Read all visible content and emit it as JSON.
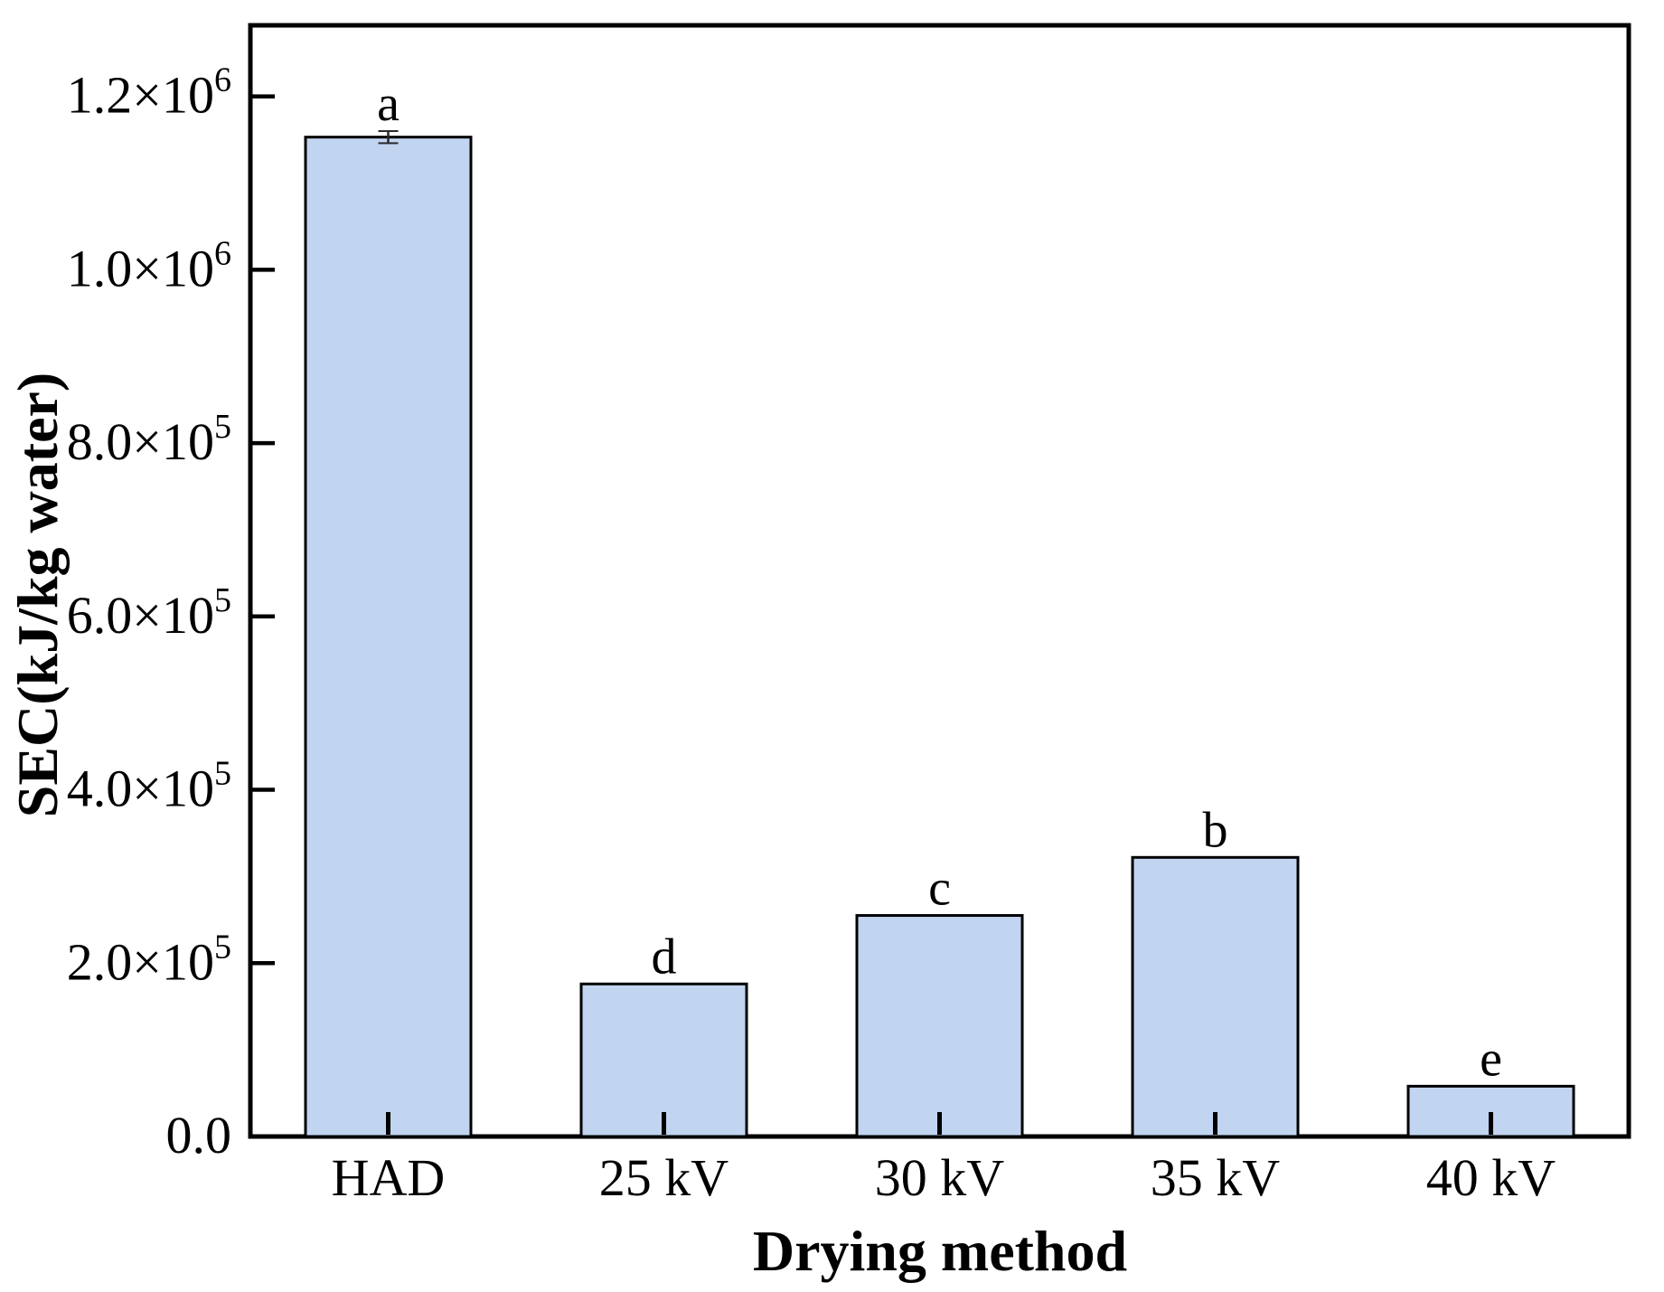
{
  "figure": {
    "background": "#ffffff"
  },
  "chart_data": {
    "type": "bar",
    "title": "",
    "xlabel": "Drying method",
    "ylabel": "SEC(kJ/kg water)",
    "categories": [
      "HAD",
      "25 kV",
      "30 kV",
      "35 kV",
      "40 kV"
    ],
    "values": [
      1153000,
      176000,
      255000,
      322000,
      58000
    ],
    "errors": [
      7000,
      0,
      0,
      0,
      0
    ],
    "significance_letters": [
      "a",
      "d",
      "c",
      "b",
      "e"
    ],
    "ylim": [
      0,
      1282000
    ],
    "yticks": [
      {
        "value": 0,
        "label": "0.0",
        "mantissa": "0.0",
        "exp": ""
      },
      {
        "value": 200000,
        "label": "2.0×10^5",
        "mantissa": "2.0×10",
        "exp": "5"
      },
      {
        "value": 400000,
        "label": "4.0×10^5",
        "mantissa": "4.0×10",
        "exp": "5"
      },
      {
        "value": 600000,
        "label": "6.0×10^5",
        "mantissa": "6.0×10",
        "exp": "5"
      },
      {
        "value": 800000,
        "label": "8.0×10^5",
        "mantissa": "8.0×10",
        "exp": "5"
      },
      {
        "value": 1000000,
        "label": "1.0×10^6",
        "mantissa": "1.0×10",
        "exp": "6"
      },
      {
        "value": 1200000,
        "label": "1.2×10^6",
        "mantissa": "1.2×10",
        "exp": "6"
      }
    ],
    "grid": false,
    "legend": null,
    "colors": {
      "bar_fill": "#c1d4f0",
      "bar_edge": "#000000",
      "axis": "#000000",
      "text": "#000000",
      "error_bar": "#2a2a2a"
    }
  }
}
